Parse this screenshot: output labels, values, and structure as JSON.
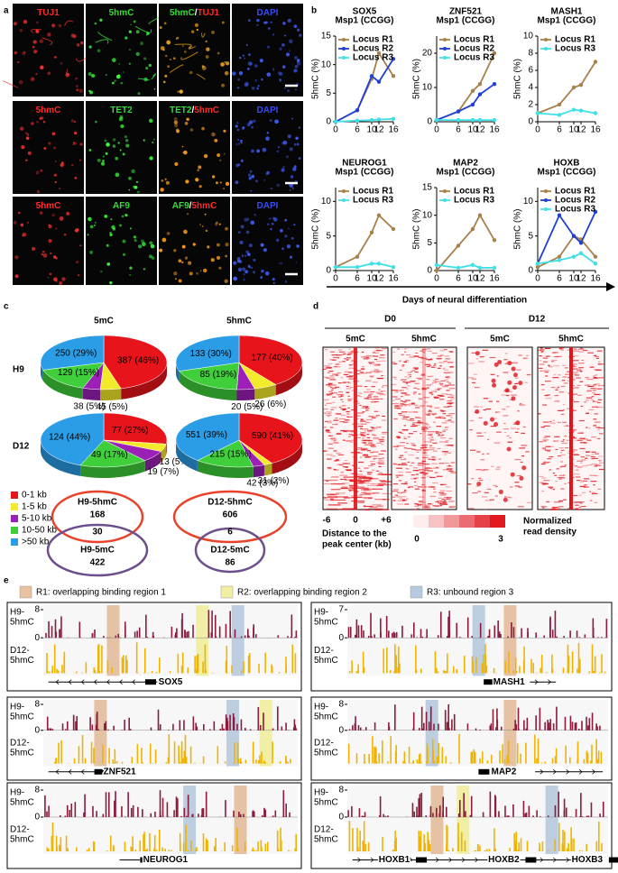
{
  "panel_labels": [
    "a",
    "b",
    "c",
    "d",
    "e"
  ],
  "panel_a": {
    "rows": [
      [
        {
          "tint": "#ff3030",
          "labels": [
            {
              "text": "TUJ1",
              "color": "#ff2a2a"
            }
          ]
        },
        {
          "tint": "#40ff40",
          "labels": [
            {
              "text": "5hmC",
              "color": "#33dd33"
            }
          ]
        },
        {
          "tint": "#ffb020",
          "labels": [
            {
              "text": "5hmC",
              "color": "#33dd33"
            },
            {
              "text": "/",
              "color": "#ffffff"
            },
            {
              "text": "TUJ1",
              "color": "#ff2a2a"
            }
          ]
        },
        {
          "tint": "#4060ff",
          "labels": [
            {
              "text": "DAPI",
              "color": "#3a4cf0"
            }
          ]
        }
      ],
      [
        {
          "tint": "#ff3030",
          "labels": [
            {
              "text": "5hmC",
              "color": "#ff2a2a"
            }
          ]
        },
        {
          "tint": "#40ff40",
          "labels": [
            {
              "text": "TET2",
              "color": "#33dd33"
            }
          ]
        },
        {
          "tint": "#ffa020",
          "labels": [
            {
              "text": "TET2",
              "color": "#33dd33"
            },
            {
              "text": "/",
              "color": "#ffffff"
            },
            {
              "text": "5hmC",
              "color": "#ff2a2a"
            }
          ]
        },
        {
          "tint": "#4060ff",
          "labels": [
            {
              "text": "DAPI",
              "color": "#3a4cf0"
            }
          ]
        }
      ],
      [
        {
          "tint": "#ff3030",
          "labels": [
            {
              "text": "5hmC",
              "color": "#ff2a2a"
            }
          ]
        },
        {
          "tint": "#40ff40",
          "labels": [
            {
              "text": "AF9",
              "color": "#33dd33"
            }
          ]
        },
        {
          "tint": "#ffa020",
          "labels": [
            {
              "text": "AF9",
              "color": "#33dd33"
            },
            {
              "text": "/",
              "color": "#ffffff"
            },
            {
              "text": "5hmC",
              "color": "#ff2a2a"
            }
          ]
        },
        {
          "tint": "#4060ff",
          "labels": [
            {
              "text": "DAPI",
              "color": "#3a4cf0"
            }
          ]
        }
      ]
    ]
  },
  "panel_b": {
    "x_label": "Days of neural differentiation"
  },
  "chart_data": [
    {
      "type": "line",
      "title": "SOX5",
      "subtitle": "Msp1 (CCGG)",
      "y_label": "5hmC (%)",
      "x": [
        0,
        6,
        10,
        12,
        16
      ],
      "xlim": [
        0,
        16
      ],
      "xticks": [
        0,
        6,
        10,
        12,
        16
      ],
      "ylim": [
        0,
        15
      ],
      "yticks": [
        0,
        5,
        10,
        15
      ],
      "series": [
        {
          "name": "Locus R1",
          "color": "#a8804b",
          "values": [
            0,
            2,
            7.5,
            12,
            8
          ]
        },
        {
          "name": "Locus R2",
          "color": "#1f3fd6",
          "values": [
            0,
            2,
            8,
            7,
            11
          ]
        },
        {
          "name": "Locus R3",
          "color": "#40e0e8",
          "values": [
            0,
            0.2,
            0.3,
            0.4,
            0.5
          ]
        }
      ]
    },
    {
      "type": "line",
      "title": "ZNF521",
      "subtitle": "Msp1 (CCGG)",
      "y_label": "5hmC (%)",
      "x": [
        0,
        6,
        10,
        12,
        16
      ],
      "xlim": [
        0,
        16
      ],
      "xticks": [
        0,
        6,
        10,
        12,
        16
      ],
      "ylim": [
        0,
        25
      ],
      "yticks": [
        0,
        10,
        20
      ],
      "series": [
        {
          "name": "Locus R1",
          "color": "#a8804b",
          "values": [
            0.5,
            3,
            9,
            11,
            20
          ]
        },
        {
          "name": "Locus R2",
          "color": "#1f3fd6",
          "values": [
            0.5,
            3,
            5,
            8,
            11
          ]
        },
        {
          "name": "Locus R3",
          "color": "#40e0e8",
          "values": [
            0.5,
            0.5,
            0.5,
            0.5,
            0.5
          ]
        }
      ]
    },
    {
      "type": "line",
      "title": "MASH1",
      "subtitle": "Msp1 (CCGG)",
      "y_label": "5hmC (%)",
      "x": [
        0,
        6,
        10,
        12,
        16
      ],
      "xlim": [
        0,
        16
      ],
      "xticks": [
        0,
        6,
        10,
        12,
        16
      ],
      "ylim": [
        0,
        10
      ],
      "yticks": [
        0,
        2,
        4,
        6,
        8,
        10
      ],
      "series": [
        {
          "name": "Locus R1",
          "color": "#a8804b",
          "values": [
            1,
            2,
            4,
            4.3,
            7
          ]
        },
        {
          "name": "Locus R3",
          "color": "#40e0e8",
          "values": [
            1,
            0.8,
            1.4,
            1.3,
            1
          ]
        }
      ]
    },
    {
      "type": "line",
      "title": "NEUROG1",
      "subtitle": "Msp1 (CCGG)",
      "y_label": "5hmC (%)",
      "x": [
        0,
        6,
        10,
        12,
        16
      ],
      "xlim": [
        0,
        16
      ],
      "xticks": [
        0,
        6,
        10,
        12,
        16
      ],
      "ylim": [
        0,
        12
      ],
      "yticks": [
        0,
        5,
        10
      ],
      "series": [
        {
          "name": "Locus R1",
          "color": "#a8804b",
          "values": [
            0.5,
            2,
            5.5,
            8,
            6
          ]
        },
        {
          "name": "Locus R3",
          "color": "#40e0e8",
          "values": [
            0.5,
            0.5,
            1,
            1,
            0.5
          ]
        }
      ]
    },
    {
      "type": "line",
      "title": "MAP2",
      "subtitle": "Msp1 (CCGG)",
      "y_label": "5hmC (%)",
      "x": [
        0,
        6,
        10,
        12,
        16
      ],
      "xlim": [
        0,
        16
      ],
      "xticks": [
        0,
        6,
        10,
        12,
        16
      ],
      "ylim": [
        0,
        15
      ],
      "yticks": [
        0,
        5,
        10,
        15
      ],
      "series": [
        {
          "name": "Locus R1",
          "color": "#a8804b",
          "values": [
            0,
            4.5,
            7.5,
            10,
            5.5
          ]
        },
        {
          "name": "Locus R3",
          "color": "#40e0e8",
          "values": [
            1,
            0.5,
            1,
            0.5,
            0.5
          ]
        }
      ]
    },
    {
      "type": "line",
      "title": "HOXB",
      "subtitle": "Msp1 (CCGG)",
      "y_label": "5hmC (%)",
      "x": [
        0,
        6,
        10,
        12,
        16
      ],
      "xlim": [
        0,
        16
      ],
      "xticks": [
        0,
        6,
        10,
        12,
        16
      ],
      "ylim": [
        0,
        12
      ],
      "yticks": [
        0,
        5,
        10
      ],
      "series": [
        {
          "name": "Locus R1",
          "color": "#a8804b",
          "values": [
            0.5,
            2,
            5,
            4.5,
            2
          ]
        },
        {
          "name": "Locus R2",
          "color": "#1f3fd6",
          "values": [
            1,
            8,
            5,
            4,
            8.5
          ]
        },
        {
          "name": "Locus R3",
          "color": "#40e0e8",
          "values": [
            1,
            1.5,
            2,
            2.5,
            1
          ]
        }
      ]
    },
    {
      "type": "pie",
      "values": [
        387,
        45,
        38,
        129,
        250
      ],
      "value_labels": [
        "387 (46%)",
        "45 (5%)",
        "38 (5%)",
        "129 (15%)",
        "250 (29%)"
      ]
    },
    {
      "type": "pie",
      "values": [
        177,
        26,
        20,
        85,
        133
      ],
      "value_labels": [
        "177 (40%)",
        "26 (6%)",
        "20 (5%)",
        "85 (19%)",
        "133 (30%)"
      ]
    },
    {
      "type": "pie",
      "values": [
        77,
        13,
        19,
        49,
        124
      ],
      "value_labels": [
        "77 (27%)",
        "13 (5%)",
        "19 (7%)",
        "49 (17%)",
        "124 (44%)"
      ]
    },
    {
      "type": "pie",
      "values": [
        590,
        31,
        42,
        215,
        551
      ],
      "value_labels": [
        "590 (41%)",
        "31 (2%)",
        "42 (3%)",
        "215 (15%)",
        "551 (39%)"
      ]
    }
  ],
  "panel_c": {
    "column_titles": [
      "5mC",
      "5hmC"
    ],
    "row_labels": [
      "H9",
      "D12"
    ],
    "legend": {
      "labels": [
        "0-1 kb",
        "1-5 kb",
        "5-10 kb",
        "10-50 kb",
        ">50 kb"
      ],
      "colors": [
        "#e8141b",
        "#f3ea2c",
        "#9c20b8",
        "#3fcf3a",
        "#2a9de6"
      ]
    },
    "venn": [
      {
        "top_label": "H9-5hmC",
        "top_count": "168",
        "overlap": "30",
        "bottom_label": "H9-5mC",
        "bottom_count": "422"
      },
      {
        "top_label": "D12-5hmC",
        "top_count": "606",
        "overlap": "6",
        "bottom_label": "D12-5mC",
        "bottom_count": "86"
      }
    ]
  },
  "panel_d": {
    "groups": [
      "D0",
      "D12"
    ],
    "columns": [
      "5mC",
      "5hmC",
      "5mC",
      "5hmC"
    ],
    "x_ticks": [
      "-6",
      "0",
      "+6"
    ],
    "x_label": [
      "Distance to the",
      "peak center (kb)"
    ],
    "scale_ticks": [
      "0",
      "3"
    ],
    "scale_label": [
      "Normalized",
      "read density"
    ]
  },
  "panel_e": {
    "legend": [
      {
        "text": "R1: overlapping binding region 1",
        "color": "#e8c3a0"
      },
      {
        "text": "R2: overlapping binding region 2",
        "color": "#f2f0a0"
      },
      {
        "text": "R3: unbound region 3",
        "color": "#b6cbe0"
      }
    ],
    "track_labels": {
      "h9": [
        "H9-",
        "5hmC"
      ],
      "d12": [
        "D12-",
        "5hmC"
      ]
    },
    "panels": [
      {
        "genes": [
          "SOX5"
        ],
        "h9_ticks": [
          0,
          8
        ]
      },
      {
        "genes": [
          "MASH1"
        ],
        "h9_ticks": [
          0,
          7
        ]
      },
      {
        "genes": [
          "ZNF521"
        ],
        "h9_ticks": [
          0,
          8
        ]
      },
      {
        "genes": [
          "MAP2"
        ],
        "h9_ticks": [
          0,
          8
        ]
      },
      {
        "genes": [
          "NEUROG1"
        ],
        "h9_ticks": [
          0,
          8
        ]
      },
      {
        "genes": [
          "HOXB1",
          "HOXB2",
          "HOXB3"
        ],
        "h9_ticks": [
          0,
          8
        ]
      }
    ]
  }
}
